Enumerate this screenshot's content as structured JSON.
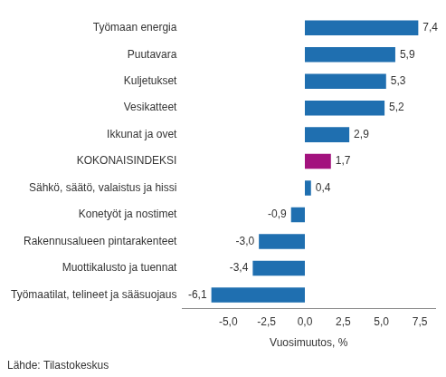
{
  "chart_data": {
    "type": "bar",
    "orientation": "horizontal",
    "categories": [
      "Työmaan energia",
      "Puutavara",
      "Kuljetukset",
      "Vesikatteet",
      "Ikkunat ja ovet",
      "KOKONAISINDEKSI",
      "Sähkö, säätö, valaistus ja hissi",
      "Konetyöt ja nostimet",
      "Rakennusalueen pintarakenteet",
      "Muottikalusto ja tuennat",
      "Työmaatilat, telineet ja sääsuojaus"
    ],
    "values": [
      7.4,
      5.9,
      5.3,
      5.2,
      2.9,
      1.7,
      0.4,
      -0.9,
      -3.0,
      -3.4,
      -6.1
    ],
    "value_labels": [
      "7,4",
      "5,9",
      "5,3",
      "5,2",
      "2,9",
      "1,7",
      "0,4",
      "-0,9",
      "-3,0",
      "-3,4",
      "-6,1"
    ],
    "data_labels": true,
    "colors": [
      "#1f6fb0",
      "#1f6fb0",
      "#1f6fb0",
      "#1f6fb0",
      "#1f6fb0",
      "#a3127e",
      "#1f6fb0",
      "#1f6fb0",
      "#1f6fb0",
      "#1f6fb0",
      "#1f6fb0"
    ],
    "xlabel": "Vuosimuutos, %",
    "xlim": [
      -8,
      8.5
    ],
    "xticks": [
      {
        "value": -5,
        "label": "-5,0"
      },
      {
        "value": -2.5,
        "label": "-2,5"
      },
      {
        "value": 0,
        "label": "0,0"
      },
      {
        "value": 2.5,
        "label": "2,5"
      },
      {
        "value": 5,
        "label": "5,0"
      },
      {
        "value": 7.5,
        "label": "7,5"
      }
    ],
    "grid": false,
    "source": "Lähde: Tilastokeskus"
  }
}
